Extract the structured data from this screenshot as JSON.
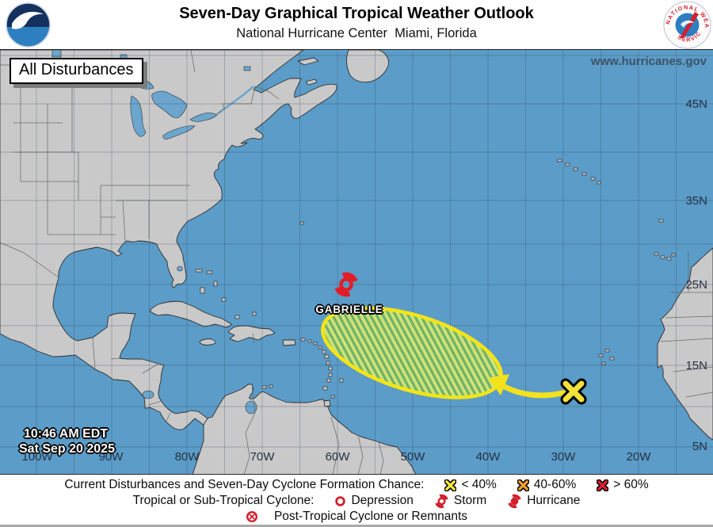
{
  "header": {
    "title": "Seven-Day Graphical Tropical Weather Outlook",
    "subtitle": "National Hurricane Center  Miami, Florida",
    "noaa_logo_text": "NOAA",
    "nws_ring_top": "NATIONAL WEATHER",
    "nws_ring_bottom": "SERVICE"
  },
  "map": {
    "view_label": "All Disturbances",
    "website": "www.hurricanes.gov",
    "timestamp": {
      "time": "10:46 AM EDT",
      "date": "Sat Sep 20 2025"
    },
    "storm": {
      "name": "GABRIELLE"
    },
    "lat_labels": [
      "45N",
      "35N",
      "25N",
      "15N",
      "5N"
    ],
    "lon_labels": [
      "100W",
      "90W",
      "80W",
      "70W",
      "60W",
      "50W",
      "40W",
      "30W",
      "20W"
    ],
    "colors": {
      "ocean": "#5B9CC8",
      "land": "#C9C9C9",
      "disturbance_fill_light": "#CFE279",
      "disturbance_fill_dark": "#6EB266",
      "disturbance_outline": "#F4E416",
      "cyclone_red": "#E31C28",
      "x_marker_yellow": "#F2E13A"
    }
  },
  "legend": {
    "line1_label": "Current Disturbances and Seven-Day Cyclone Formation Chance:",
    "line1_items": [
      {
        "label": "< 40%",
        "color": "#F3E93F"
      },
      {
        "label": "40-60%",
        "color": "#EF9F32"
      },
      {
        "label": "> 60%",
        "color": "#DA2032"
      }
    ],
    "line2_label": "Tropical or Sub-Tropical Cyclone:",
    "line2_items": [
      {
        "label": "Depression"
      },
      {
        "label": "Storm"
      },
      {
        "label": "Hurricane"
      }
    ],
    "line3_items": [
      {
        "label": "Post-Tropical Cyclone or Remnants"
      }
    ]
  }
}
